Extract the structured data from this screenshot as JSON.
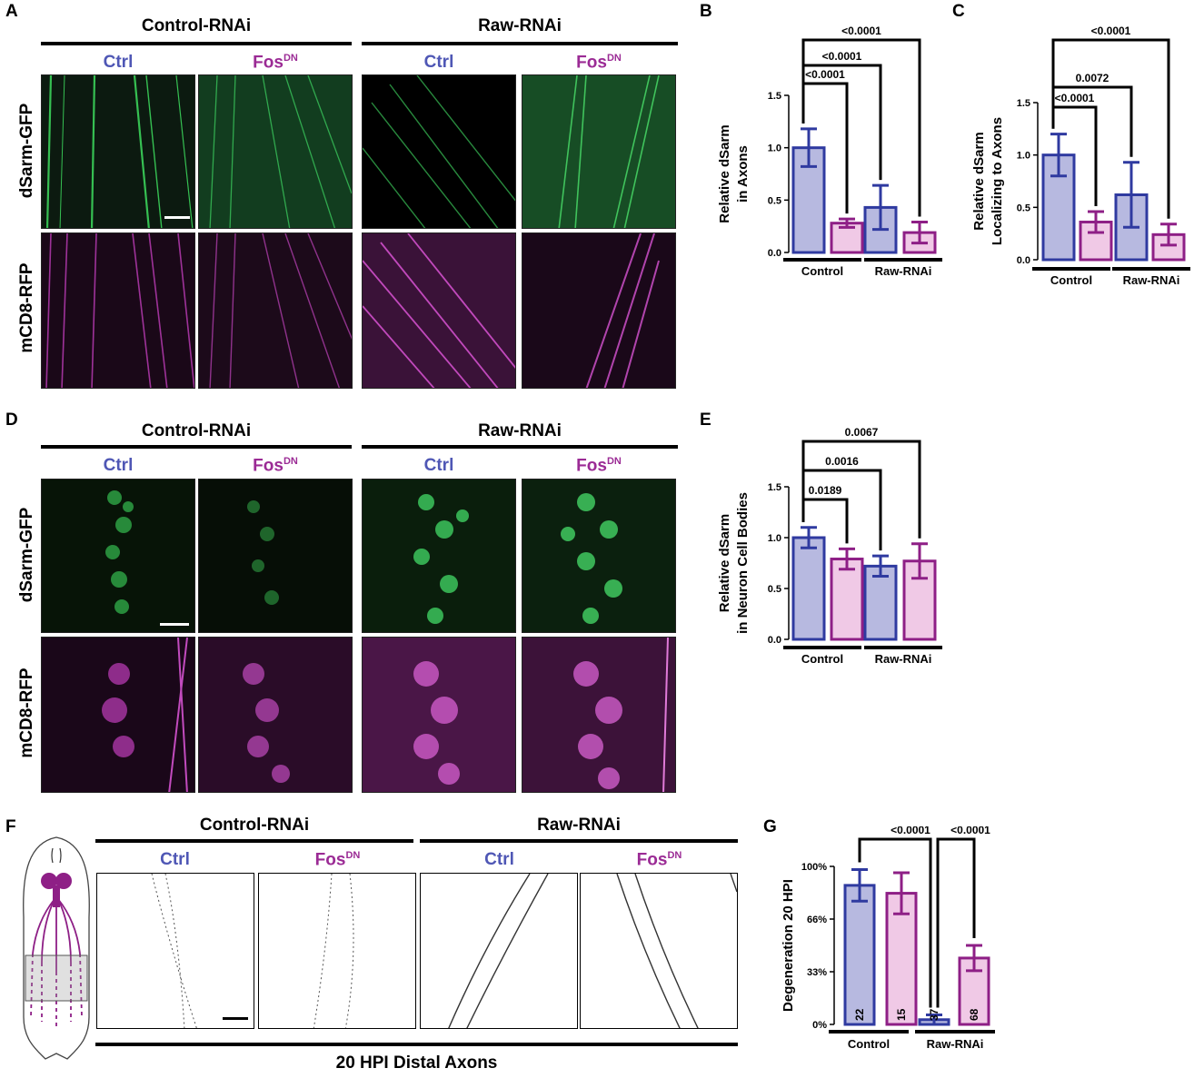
{
  "panels": {
    "A": "A",
    "B": "B",
    "C": "C",
    "D": "D",
    "E": "E",
    "F": "F",
    "G": "G"
  },
  "groups": {
    "control": "Control-RNAi",
    "raw": "Raw-RNAi"
  },
  "conditions": {
    "ctrl": "Ctrl",
    "fos": "Fos",
    "fos_sup": "DN"
  },
  "rows": {
    "gfp": "dSarm-GFP",
    "rfp": "mCD8-RFP"
  },
  "f_caption": "20 HPI Distal Axons",
  "colors": {
    "ctrl_fill": "#b7b9e0",
    "ctrl_stroke": "#2f3aa0",
    "fos_fill": "#f0c9e6",
    "fos_stroke": "#8e1f86"
  },
  "charts": [
    {
      "id": "B",
      "type": "bar",
      "ylabel": [
        "Relative dSarm",
        "in Axons"
      ],
      "yticks": [
        "0.0",
        "0.5",
        "1.0",
        "1.5"
      ],
      "ylim": [
        0,
        1.5
      ],
      "groups": [
        "Control",
        "Raw-RNAi"
      ],
      "values": [
        1.0,
        0.28,
        0.43,
        0.19
      ],
      "errors": [
        0.18,
        0.04,
        0.21,
        0.1
      ],
      "pvalues": [
        "<0.0001",
        "<0.0001",
        "<0.0001"
      ]
    },
    {
      "id": "C",
      "type": "bar",
      "ylabel": [
        "Relative dSarm",
        "Localizing to Axons"
      ],
      "yticks": [
        "0.0",
        "0.5",
        "1.0",
        "1.5"
      ],
      "ylim": [
        0,
        1.5
      ],
      "groups": [
        "Control",
        "Raw-RNAi"
      ],
      "values": [
        1.0,
        0.36,
        0.62,
        0.24
      ],
      "errors": [
        0.2,
        0.1,
        0.31,
        0.1
      ],
      "pvalues": [
        "<0.0001",
        "0.0072",
        "<0.0001"
      ]
    },
    {
      "id": "E",
      "type": "bar",
      "ylabel": [
        "Relative dSarm",
        "in Neuron Cell Bodies"
      ],
      "yticks": [
        "0.0",
        "0.5",
        "1.0",
        "1.5"
      ],
      "ylim": [
        0,
        1.5
      ],
      "groups": [
        "Control",
        "Raw-RNAi"
      ],
      "values": [
        1.0,
        0.79,
        0.72,
        0.77
      ],
      "errors": [
        0.1,
        0.1,
        0.1,
        0.17
      ],
      "pvalues": [
        "0.0189",
        "0.0016",
        "0.0067"
      ]
    },
    {
      "id": "G",
      "type": "bar",
      "ylabel": [
        "Degeneration 20 HPI"
      ],
      "yticks": [
        "0%",
        "33%",
        "66%",
        "100%"
      ],
      "ylim": [
        0,
        100
      ],
      "groups": [
        "Control",
        "Raw-RNAi"
      ],
      "values": [
        88,
        83,
        3,
        42
      ],
      "errors": [
        10,
        13,
        3,
        8
      ],
      "counts": [
        "22",
        "15",
        "37",
        "68"
      ],
      "pvalues": [
        "<0.0001",
        "<0.0001"
      ]
    }
  ],
  "chart_data": [
    {
      "type": "bar",
      "title": "",
      "ylabel": "Relative dSarm in Axons",
      "categories": [
        "Control Ctrl",
        "Control FosDN",
        "Raw-RNAi Ctrl",
        "Raw-RNAi FosDN"
      ],
      "values": [
        1.0,
        0.28,
        0.43,
        0.19
      ],
      "ylim": [
        0,
        1.5
      ]
    },
    {
      "type": "bar",
      "title": "",
      "ylabel": "Relative dSarm Localizing to Axons",
      "categories": [
        "Control Ctrl",
        "Control FosDN",
        "Raw-RNAi Ctrl",
        "Raw-RNAi FosDN"
      ],
      "values": [
        1.0,
        0.36,
        0.62,
        0.24
      ],
      "ylim": [
        0,
        1.5
      ]
    },
    {
      "type": "bar",
      "title": "",
      "ylabel": "Relative dSarm in Neuron Cell Bodies",
      "categories": [
        "Control Ctrl",
        "Control FosDN",
        "Raw-RNAi Ctrl",
        "Raw-RNAi FosDN"
      ],
      "values": [
        1.0,
        0.79,
        0.72,
        0.77
      ],
      "ylim": [
        0,
        1.5
      ]
    },
    {
      "type": "bar",
      "title": "",
      "ylabel": "Degeneration 20 HPI",
      "categories": [
        "Control Ctrl",
        "Control FosDN",
        "Raw-RNAi Ctrl",
        "Raw-RNAi FosDN"
      ],
      "values": [
        88,
        83,
        3,
        42
      ],
      "ylim": [
        0,
        100
      ]
    }
  ]
}
